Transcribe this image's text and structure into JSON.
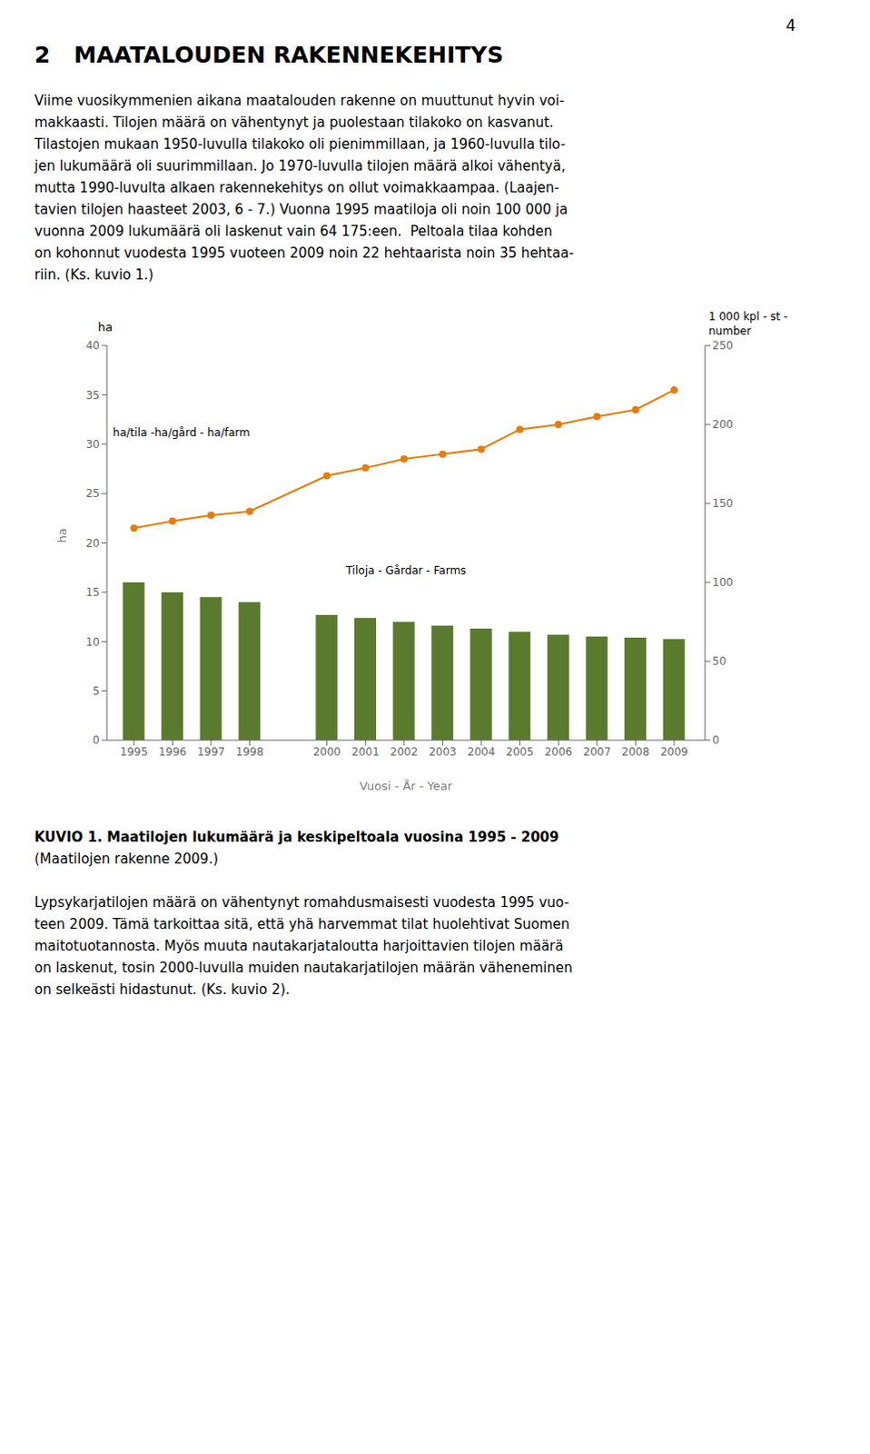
{
  "page_number": "4",
  "title": "2   MAATALOUDEN RAKENNEKEHITYS",
  "paragraphs_before": [
    "Viime vuosikymmenien aikana maatalouden rakenne on muuttunut hyvin voi-",
    "makkaasti. Tilojen määrä on vähentynyt ja puolestaan tilakoko on kasvanut.",
    "Tilastojen mukaan 1950-luvulla tilakoko oli pienimmillaan, ja 1960-luvulla tilo-",
    "jen lukumäärä oli suurimmillaan. Jo 1970-luvulla tilojen määrä alkoi vähentyä,",
    "mutta 1990-luvulta alkaen rakennekehitys on ollut voimakkaampaa. (Laajen-",
    "tavien tilojen haasteet 2003, 6 - 7.) Vuonna 1995 maatiloja oli noin 100 000 ja",
    "vuonna 2009 lukumäärä oli laskenut vain 64 175:een.  Peltoala tilaa kohden",
    "on kohonnut vuodesta 1995 vuoteen 2009 noin 22 hehtaarista noin 35 hehtaa-",
    "riin. (Ks. kuvio 1.)"
  ],
  "chart_data": {
    "type": "bar",
    "x": [
      1995,
      1996,
      1997,
      1998,
      2000,
      2001,
      2002,
      2003,
      2004,
      2005,
      2006,
      2007,
      2008,
      2009
    ],
    "xlim": [
      1994.3,
      2009.8
    ],
    "xticks": [
      1995,
      1996,
      1997,
      1998,
      2000,
      2001,
      2002,
      2003,
      2004,
      2005,
      2006,
      2007,
      2008,
      2009
    ],
    "xlabel": "Vuosi - År - Year",
    "ylabel": "ha",
    "ylim": [
      0,
      40
    ],
    "yticks": [
      0,
      5,
      10,
      15,
      20,
      25,
      30,
      35,
      40
    ],
    "y2label": [
      "1 000 kpl - st -",
      "number"
    ],
    "y2lim": [
      0,
      250
    ],
    "y2ticks": [
      0,
      50,
      100,
      150,
      200,
      250
    ],
    "series": [
      {
        "type": "bar",
        "color": "#5a7a2e",
        "values": [
          16.0,
          15.0,
          14.5,
          14.0,
          12.7,
          12.4,
          12.0,
          11.6,
          11.3,
          11.0,
          10.7,
          10.5,
          10.4,
          10.25
        ]
      },
      {
        "type": "line",
        "color": "#e87c0a",
        "marker": "circle",
        "values": [
          21.5,
          22.2,
          22.8,
          23.2,
          26.8,
          27.6,
          28.5,
          29.0,
          29.5,
          31.5,
          32.0,
          32.8,
          33.5,
          35.5
        ]
      }
    ],
    "annotations": [
      "ha/tila -ha/gård - ha/farm",
      "Tiloja - Gårdar - Farms"
    ],
    "grid": false
  },
  "caption": "KUVIO 1. Maatilojen lukumäärä ja keskipeltoala vuosina 1995 - 2009",
  "caption_source": "(Maatilojen rakenne 2009.)",
  "paragraphs_after": [
    "Lypsykarjatilojen määrä on vähentynyt romahdusmaisesti vuodesta 1995 vuo-",
    "teen 2009. Tämä tarkoittaa sitä, että yhä harvemmat tilat huolehtivat Suomen",
    "maitotuotannosta. Myös muuta nautakarjataloutta harjoittavien tilojen määrä",
    "on laskenut, tosin 2000-luvulla muiden nautakarjatilojen määrän väheneminen",
    "on selkeästi hidastunut. (Ks. kuvio 2)."
  ]
}
